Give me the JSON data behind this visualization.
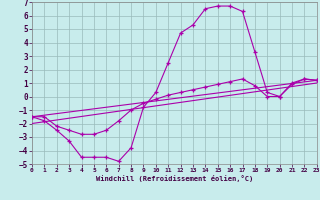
{
  "xlabel": "Windchill (Refroidissement éolien,°C)",
  "xlim": [
    0,
    23
  ],
  "ylim": [
    -5,
    7
  ],
  "yticks": [
    -5,
    -4,
    -3,
    -2,
    -1,
    0,
    1,
    2,
    3,
    4,
    5,
    6,
    7
  ],
  "xticks": [
    0,
    1,
    2,
    3,
    4,
    5,
    6,
    7,
    8,
    9,
    10,
    11,
    12,
    13,
    14,
    15,
    16,
    17,
    18,
    19,
    20,
    21,
    22,
    23
  ],
  "bg_color": "#c8ecec",
  "line_color": "#aa00aa",
  "grid_color": "#99bbbb",
  "line1_x": [
    0,
    1,
    2,
    3,
    4,
    5,
    6,
    7,
    8,
    9,
    10,
    11,
    12,
    13,
    14,
    15,
    16,
    17,
    18,
    19,
    20,
    21,
    22,
    23
  ],
  "line1_y": [
    -1.5,
    -1.8,
    -2.5,
    -3.3,
    -4.5,
    -4.5,
    -4.5,
    -4.8,
    -3.8,
    -0.8,
    0.3,
    2.5,
    4.7,
    5.3,
    6.5,
    6.7,
    6.7,
    6.3,
    3.3,
    0.3,
    0.0,
    1.0,
    1.3,
    1.2
  ],
  "line2_x": [
    0,
    1,
    2,
    3,
    4,
    5,
    6,
    7,
    8,
    9,
    10,
    11,
    12,
    13,
    14,
    15,
    16,
    17,
    18,
    19,
    20,
    21,
    22,
    23
  ],
  "line2_y": [
    -1.5,
    -1.5,
    -2.2,
    -2.5,
    -2.8,
    -2.8,
    -2.5,
    -1.8,
    -1.0,
    -0.5,
    -0.2,
    0.1,
    0.3,
    0.5,
    0.7,
    0.9,
    1.1,
    1.3,
    0.8,
    0.0,
    0.0,
    0.9,
    1.3,
    1.2
  ],
  "line3_x": [
    0,
    23
  ],
  "line3_y": [
    -1.5,
    1.2
  ],
  "line4_x": [
    0,
    23
  ],
  "line4_y": [
    -2.0,
    1.0
  ]
}
